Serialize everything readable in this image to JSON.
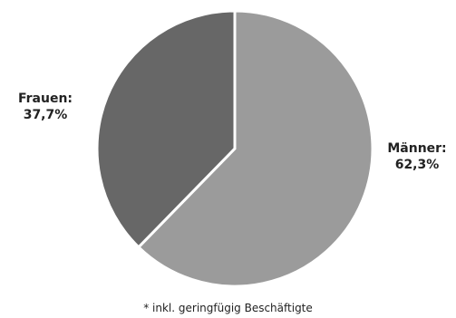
{
  "chart_data": {
    "type": "pie",
    "categories": [
      "Männer",
      "Frauen"
    ],
    "values": [
      62.3,
      37.7
    ],
    "slices": [
      {
        "label": "Männer:",
        "value_text": "62,3%",
        "value": 62.3,
        "color": "#9b9b9b"
      },
      {
        "label": "Frauen:",
        "value_text": "37,7%",
        "value": 37.7,
        "color": "#676767"
      }
    ],
    "title": "",
    "annotations": [
      "* inkl. geringfügig Beschäftigte"
    ],
    "legend": "none",
    "start_angle_deg": 0,
    "direction": "clockwise"
  }
}
